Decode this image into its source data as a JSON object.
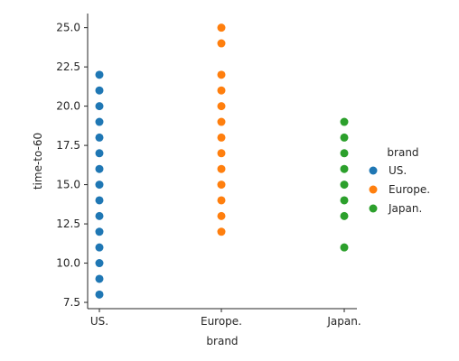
{
  "chart_data": {
    "type": "scatter",
    "xlabel": "brand",
    "ylabel": "time-to-60",
    "categories": [
      " US.",
      " Europe.",
      " Japan."
    ],
    "ylim": [
      7.1,
      25.9
    ],
    "yticks": [
      7.5,
      10.0,
      12.5,
      15.0,
      17.5,
      20.0,
      22.5,
      25.0
    ],
    "ytick_labels": [
      "7.5",
      "10.0",
      "12.5",
      "15.0",
      "17.5",
      "20.0",
      "22.5",
      "25.0"
    ],
    "grid": false,
    "legend": {
      "title": "brand",
      "placement": "right"
    },
    "series": [
      {
        "name": " US.",
        "category": " US.",
        "color": "#1f77b4",
        "values": [
          8,
          9,
          10,
          11,
          12,
          13,
          14,
          15,
          16,
          17,
          18,
          19,
          20,
          21,
          22
        ]
      },
      {
        "name": " Europe.",
        "category": " Europe.",
        "color": "#ff7f0e",
        "values": [
          12,
          13,
          14,
          15,
          16,
          17,
          18,
          19,
          20,
          21,
          22,
          24,
          25
        ]
      },
      {
        "name": " Japan.",
        "category": " Japan.",
        "color": "#2ca02c",
        "values": [
          11,
          13,
          14,
          15,
          16,
          17,
          18,
          19
        ]
      }
    ]
  }
}
